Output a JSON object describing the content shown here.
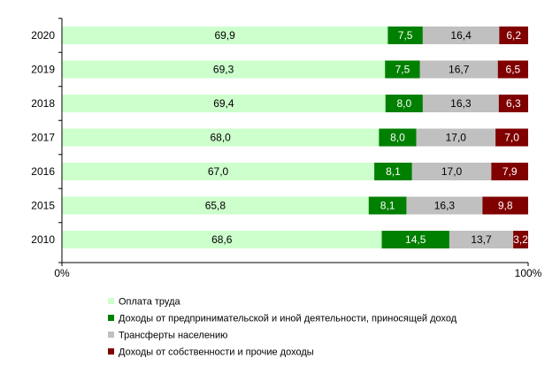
{
  "chart_data": {
    "type": "bar",
    "orientation": "horizontal",
    "stacked": "percent",
    "categories": [
      "2020",
      "2019",
      "2018",
      "2017",
      "2016",
      "2015",
      "2010"
    ],
    "series": [
      {
        "name": "Оплата труда",
        "color": "#ccffcc",
        "label_color": "#000000",
        "values": [
          69.9,
          69.3,
          69.4,
          68.0,
          67.0,
          65.8,
          68.6
        ],
        "labels": [
          "69,9",
          "69,3",
          "69,4",
          "68,0",
          "67,0",
          "65,8",
          "68,6"
        ]
      },
      {
        "name": "Доходы от предпринимательской и иной деятельности, приносящей доход",
        "color": "#008000",
        "label_color": "#ffffff",
        "values": [
          7.5,
          7.5,
          8.0,
          8.0,
          8.1,
          8.1,
          14.5
        ],
        "labels": [
          "7,5",
          "7,5",
          "8,0",
          "8,0",
          "8,1",
          "8,1",
          "14,5"
        ]
      },
      {
        "name": "Трансферты населению",
        "color": "#c0c0c0",
        "label_color": "#000000",
        "values": [
          16.4,
          16.7,
          16.3,
          17.0,
          17.0,
          16.3,
          13.7
        ],
        "labels": [
          "16,4",
          "16,7",
          "16,3",
          "17,0",
          "17,0",
          "16,3",
          "13,7"
        ]
      },
      {
        "name": "Доходы от собственности и прочие доходы",
        "color": "#800000",
        "label_color": "#ffffff",
        "values": [
          6.2,
          6.5,
          6.3,
          7.0,
          7.9,
          9.8,
          3.2
        ],
        "labels": [
          "6,2",
          "6,5",
          "6,3",
          "7,0",
          "7,9",
          "9,8",
          "3,2"
        ]
      }
    ],
    "x_ticks": [
      "0%",
      "100%"
    ],
    "xlim": [
      0,
      100
    ],
    "grid": false,
    "legend": "bottom-left, vertical"
  }
}
